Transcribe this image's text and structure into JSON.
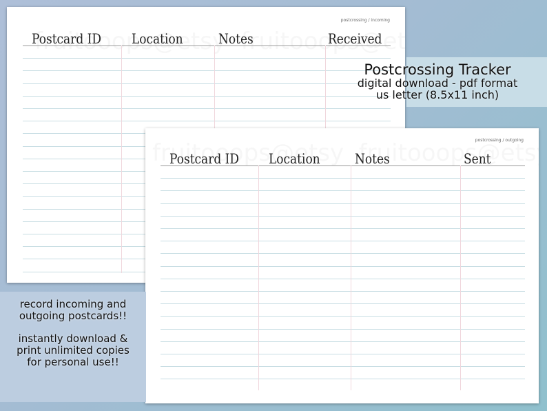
{
  "incoming_sheet": {
    "breadcrumb": "postcrossing / incoming",
    "columns": [
      "Postcard ID",
      "Location",
      "Notes",
      "Received"
    ],
    "watermark": "fruitooops@etsy"
  },
  "outgoing_sheet": {
    "breadcrumb": "postcrossing / outgoing",
    "columns": [
      "Postcard ID",
      "Location",
      "Notes",
      "Sent"
    ],
    "watermark": "fruitooops@etsy"
  },
  "title_panel": {
    "title": "Postcrossing Tracker",
    "subtitle": "digital download - pdf format",
    "size": "us letter (8.5x11 inch)"
  },
  "promo_panel": {
    "line1": "record incoming and outgoing postcards!!",
    "line2": "instantly download & print unlimited copies for personal use!!"
  },
  "colors": {
    "rule_line": "#c7dde3",
    "column_line": "#f0d6dc",
    "background": "#a3bcd3"
  }
}
